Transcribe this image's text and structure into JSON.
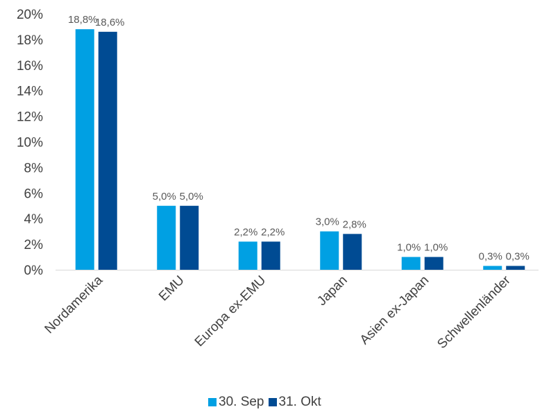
{
  "chart_data": {
    "type": "bar",
    "categories": [
      "Nordamerika",
      "EMU",
      "Europa ex-EMU",
      "Japan",
      "Asien ex-Japan",
      "Schwellenländer"
    ],
    "series": [
      {
        "name": "30. Sep",
        "values": [
          18.8,
          5.0,
          2.2,
          3.0,
          1.0,
          0.3
        ],
        "labels": [
          "18,8%",
          "5,0%",
          "2,2%",
          "3,0%",
          "1,0%",
          "0,3%"
        ],
        "color": "#00A0E3"
      },
      {
        "name": "31. Okt",
        "values": [
          18.6,
          5.0,
          2.2,
          2.8,
          1.0,
          0.3
        ],
        "labels": [
          "18,6%",
          "5,0%",
          "2,2%",
          "2,8%",
          "1,0%",
          "0,3%"
        ],
        "color": "#004B93"
      }
    ],
    "ylim": [
      0,
      20
    ],
    "yticks": [
      "0%",
      "2%",
      "4%",
      "6%",
      "8%",
      "10%",
      "12%",
      "14%",
      "16%",
      "18%",
      "20%"
    ],
    "grid": false,
    "legend_position": "bottom"
  }
}
